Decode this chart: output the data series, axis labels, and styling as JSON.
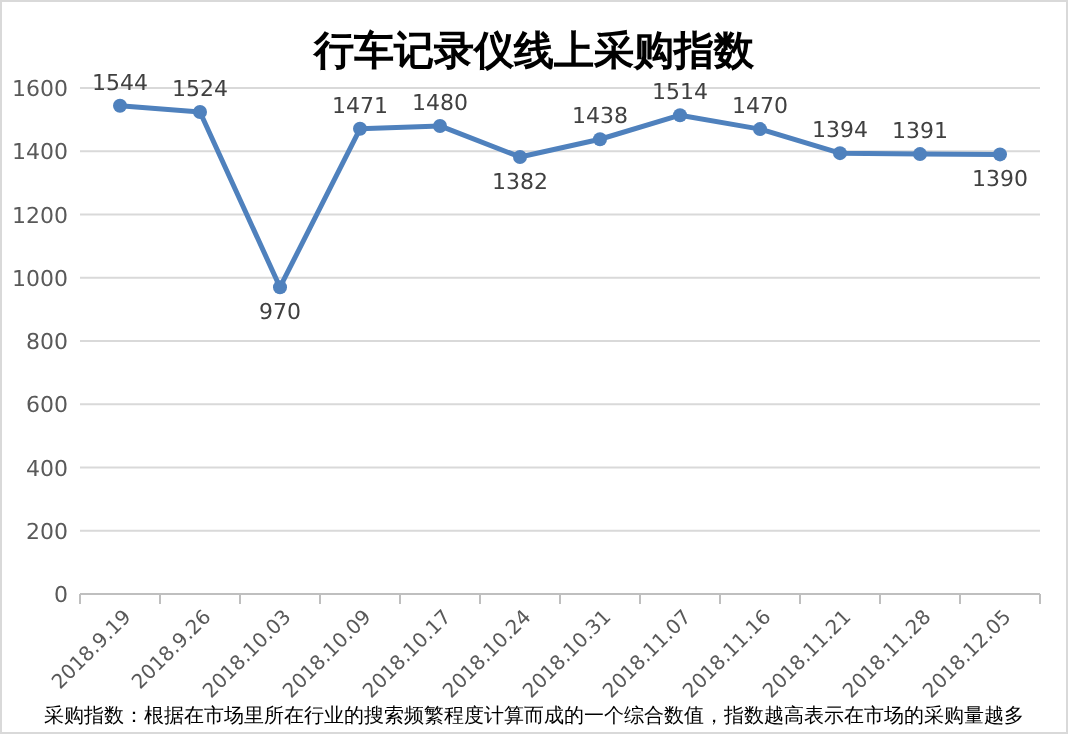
{
  "chart_data": {
    "type": "line",
    "title": "行车记录仪线上采购指数",
    "categories": [
      "2018.9.19",
      "2018.9.26",
      "2018.10.03",
      "2018.10.09",
      "2018.10.17",
      "2018.10.24",
      "2018.10.31",
      "2018.11.07",
      "2018.11.16",
      "2018.11.21",
      "2018.11.28",
      "2018.12.05"
    ],
    "series": [
      {
        "color": "#4f81bd",
        "values": [
          1544,
          1524,
          970,
          1471,
          1480,
          1382,
          1438,
          1514,
          1470,
          1394,
          1391,
          1390
        ]
      }
    ],
    "ylim": [
      0,
      1600
    ],
    "yticks": [
      0,
      200,
      400,
      600,
      800,
      1000,
      1200,
      1400,
      1600
    ],
    "grid": "y",
    "marker": "circle",
    "line_style": "solid",
    "data_labels": true,
    "annotations": [
      "采购指数：根据在市场里所在行业的搜索频繁程度计算而成的一个综合数值，指数越高表示在市场的采购量越多"
    ]
  }
}
